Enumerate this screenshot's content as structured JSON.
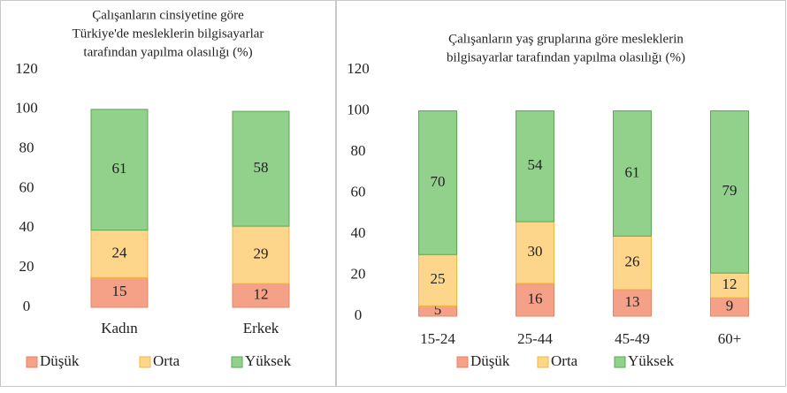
{
  "chart_data": [
    {
      "type": "stacked-bar",
      "title": [
        "Çalışanların cinsiyetine göre",
        "Türkiye'de mesleklerin bilgisayarlar",
        "tarafından yapılma olasılığı (%)"
      ],
      "categories": [
        "Kadın",
        "Erkek"
      ],
      "series": [
        {
          "name": "Düşük",
          "color": "#f4a187",
          "values": [
            15,
            12
          ]
        },
        {
          "name": "Orta",
          "color": "#fdd68c",
          "values": [
            24,
            29
          ]
        },
        {
          "name": "Yüksek",
          "color": "#92d18c",
          "values": [
            61,
            58
          ]
        }
      ],
      "ylim": [
        0,
        120
      ],
      "yticks": [
        0,
        20,
        40,
        60,
        80,
        100,
        120
      ],
      "legend": "bottom"
    },
    {
      "type": "stacked-bar",
      "title": [
        "Çalışanların yaş gruplarına göre mesleklerin",
        "bilgisayarlar tarafından yapılma olasılığı (%)"
      ],
      "categories": [
        "15-24",
        "25-44",
        "45-49",
        "60+"
      ],
      "series": [
        {
          "name": "Düşük",
          "color": "#f4a187",
          "values": [
            5,
            16,
            13,
            9
          ]
        },
        {
          "name": "Orta",
          "color": "#fdd68c",
          "values": [
            25,
            30,
            26,
            12
          ]
        },
        {
          "name": "Yüksek",
          "color": "#92d18c",
          "values": [
            70,
            54,
            61,
            79
          ]
        }
      ],
      "ylim": [
        0,
        120
      ],
      "yticks": [
        0,
        20,
        40,
        60,
        80,
        100,
        120
      ],
      "legend": "bottom"
    }
  ]
}
